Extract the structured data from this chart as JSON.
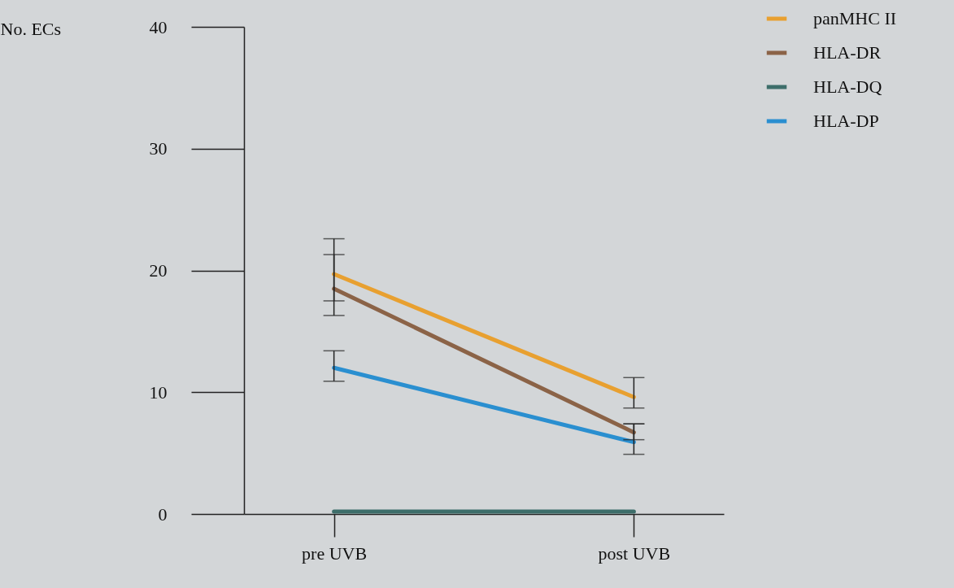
{
  "chart_data": {
    "type": "line",
    "ylabel": "No. ECs",
    "categories": [
      "pre UVB",
      "post UVB"
    ],
    "ylim": [
      0,
      40
    ],
    "yticks": [
      0,
      10,
      20,
      30,
      40
    ],
    "grid": false,
    "legend": "top right",
    "marker": "none",
    "line_style": "solid",
    "series": [
      {
        "name": "panMHC II",
        "color": "#e8a030",
        "values": [
          19.7,
          9.6
        ],
        "errors": [
          [
            17.5,
            22.6
          ],
          [
            8.7,
            11.2
          ]
        ]
      },
      {
        "name": "HLA-DR",
        "color": "#8b6347",
        "values": [
          18.5,
          6.7
        ],
        "errors": [
          [
            16.3,
            21.3
          ],
          [
            6.1,
            7.4
          ]
        ]
      },
      {
        "name": "HLA-DQ",
        "color": "#3d6e6a",
        "values": [
          0.2,
          0.2
        ]
      },
      {
        "name": "HLA-DP",
        "color": "#2a8fd0",
        "values": [
          12,
          5.9
        ],
        "errors": [
          [
            10.9,
            13.4
          ],
          [
            4.9,
            7.4
          ]
        ]
      }
    ]
  }
}
